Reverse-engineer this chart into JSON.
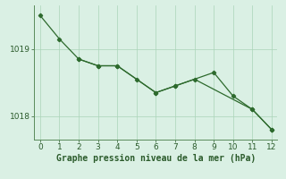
{
  "title": "Graphe pression niveau de la mer (hPa)",
  "line1_x": [
    0,
    1,
    2,
    3,
    4,
    6,
    7,
    9,
    10,
    11,
    12
  ],
  "line1_y": [
    1019.5,
    1019.15,
    1018.85,
    1018.75,
    1018.75,
    1018.35,
    1018.45,
    1018.65,
    1018.3,
    1018.1,
    1017.8
  ],
  "line2_x": [
    2,
    3,
    4,
    5,
    6,
    7,
    8,
    11,
    12
  ],
  "line2_y": [
    1018.85,
    1018.75,
    1018.75,
    1018.55,
    1018.35,
    1018.45,
    1018.55,
    1018.1,
    1017.8
  ],
  "line_color": "#2d6a2d",
  "bg_color": "#daf0e4",
  "grid_color": "#aad4b8",
  "spine_color": "#5a8a5a",
  "text_color": "#2a5a2a",
  "xlim": [
    -0.3,
    12.3
  ],
  "ylim": [
    1017.65,
    1019.65
  ],
  "yticks": [
    1018,
    1019
  ],
  "xticks": [
    0,
    1,
    2,
    3,
    4,
    5,
    6,
    7,
    8,
    9,
    10,
    11,
    12
  ],
  "title_fontsize": 7.0,
  "tick_fontsize": 6.5
}
